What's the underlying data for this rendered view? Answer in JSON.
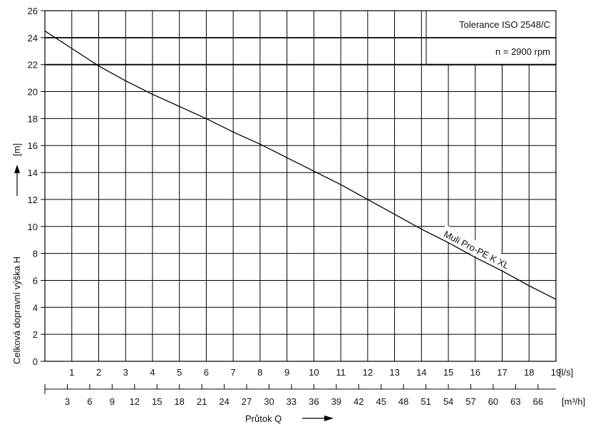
{
  "chart_data": {
    "type": "line",
    "title": "",
    "ylabel": "Celková dopravní výška  H",
    "ylabel_unit": "[m]",
    "xlabel": "Průtok  Q",
    "x_unit_ls": "[l/s]",
    "x_unit_m3h": "[m³/h]",
    "ylim": [
      0,
      26
    ],
    "y_ticks": [
      0,
      2,
      4,
      6,
      8,
      10,
      12,
      14,
      16,
      18,
      20,
      22,
      24,
      26
    ],
    "xlim": [
      0,
      19
    ],
    "x_ticks_ls": [
      1,
      2,
      3,
      4,
      5,
      6,
      7,
      8,
      9,
      10,
      11,
      12,
      13,
      14,
      15,
      16,
      17,
      18,
      19
    ],
    "x_ticks_m3h": [
      3,
      6,
      9,
      12,
      15,
      18,
      21,
      24,
      27,
      30,
      33,
      36,
      39,
      42,
      45,
      48,
      51,
      54,
      57,
      60,
      63,
      66
    ],
    "grid": true,
    "annotations": {
      "tolerance": "Tolerance  ISO 2548/C",
      "speed": "n = 2900 rpm"
    },
    "series": [
      {
        "name": "Muli Pro-PE K XL",
        "x": [
          0,
          1,
          2,
          3,
          4,
          5,
          6,
          7,
          8,
          9,
          10,
          11,
          12,
          13,
          14,
          15,
          16,
          17,
          18,
          19
        ],
        "y": [
          24.5,
          23.2,
          21.9,
          20.8,
          19.8,
          18.9,
          18.0,
          17.0,
          16.1,
          15.1,
          14.1,
          13.1,
          12.0,
          10.9,
          9.8,
          8.8,
          7.7,
          6.7,
          5.6,
          4.6
        ]
      }
    ]
  }
}
